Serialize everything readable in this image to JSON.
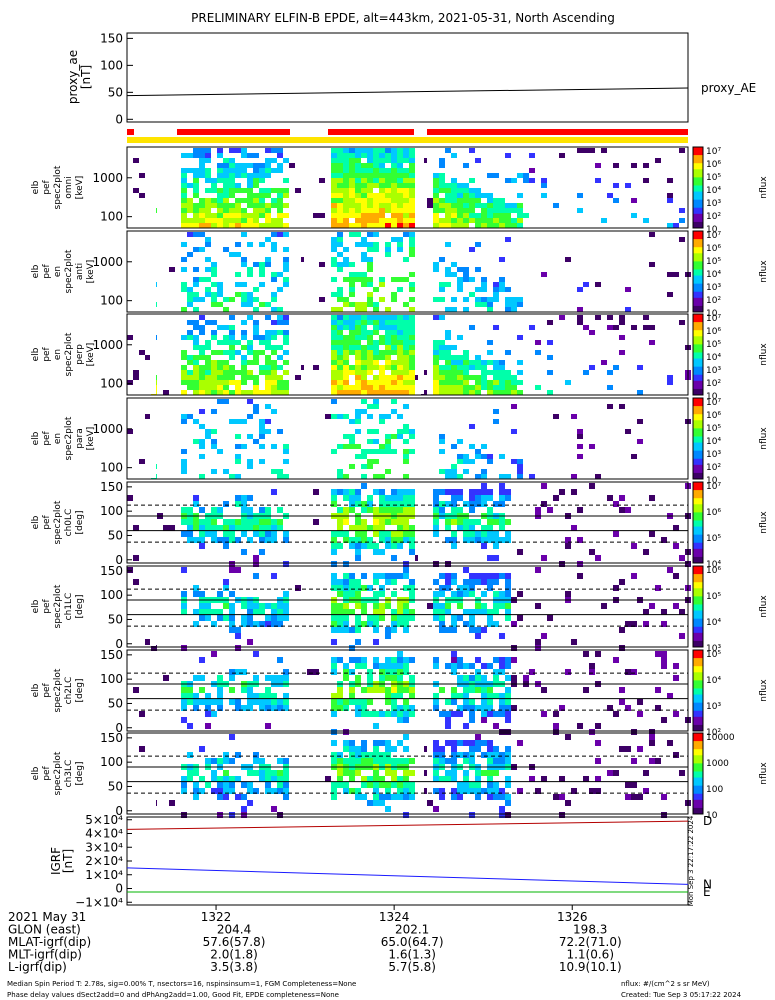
{
  "title": "PRELIMINARY ELFIN-B EPDE, alt=443km, 2021-05-31, North Ascending",
  "colors": {
    "ae_line": "#000000",
    "bar_red": "#ff0000",
    "bar_yellow": "#ffe400",
    "grf_d": "#b40000",
    "grf_n": "#1a1aff",
    "grf_e": "#00b400",
    "palette": [
      "#3d0066",
      "#6a00aa",
      "#3333ff",
      "#0088ff",
      "#00c8ff",
      "#00ffaa",
      "#33ff33",
      "#aaff00",
      "#ffff00",
      "#ffaa00",
      "#ff0000"
    ]
  },
  "chart_data": [
    {
      "panel": "proxy_ae",
      "type": "line",
      "ylabel": [
        "proxy_ae",
        "[nT]"
      ],
      "legend": "proxy_AE",
      "ylim": [
        -5,
        160
      ],
      "yticks": [
        "150",
        "100",
        "50",
        "0"
      ],
      "x": [
        1321.0,
        1327.3
      ],
      "y": [
        44,
        58
      ]
    },
    {
      "panel": "elb_pef_spec2plot_omni",
      "type": "heatmap",
      "ylabel": [
        "elb",
        "pef",
        "spec2plot",
        "omni",
        "[keV]"
      ],
      "yticks": [
        "1000",
        "100"
      ],
      "zlabel": "nflux",
      "zticks": [
        "10⁷",
        "10⁶",
        "10⁵",
        "10⁴",
        "10³",
        "10²",
        "10"
      ]
    },
    {
      "panel": "elb_pef_en_spec2plot_anti",
      "type": "heatmap",
      "ylabel": [
        "elb",
        "pef",
        "en",
        "spec2plot",
        "anti",
        "[keV]"
      ],
      "yticks": [
        "1000",
        "100"
      ],
      "zlabel": "nflux",
      "zticks": [
        "10⁷",
        "10⁶",
        "10⁵",
        "10⁴",
        "10³",
        "10²",
        "10"
      ]
    },
    {
      "panel": "elb_pef_en_spec2plot_perp",
      "type": "heatmap",
      "ylabel": [
        "elb",
        "pef",
        "en",
        "spec2plot",
        "perp",
        "[keV]"
      ],
      "yticks": [
        "1000",
        "100"
      ],
      "zlabel": "nflux",
      "zticks": [
        "10⁷",
        "10⁶",
        "10⁵",
        "10⁴",
        "10³",
        "10²",
        "10"
      ]
    },
    {
      "panel": "elb_pef_en_spec2plot_para",
      "type": "heatmap",
      "ylabel": [
        "elb",
        "pef",
        "en",
        "spec2plot",
        "para",
        "[keV]"
      ],
      "yticks": [
        "1000",
        "100"
      ],
      "zlabel": "nflux",
      "zticks": [
        "10⁷",
        "10⁶",
        "10⁵",
        "10⁴",
        "10³",
        "10²",
        "10"
      ]
    },
    {
      "panel": "elb_pef_spec2plot_ch0LC",
      "type": "heatmap",
      "ylabel": [
        "elb",
        "pef",
        "spec2plot",
        "ch0LC",
        "[deg]"
      ],
      "yticks": [
        "150",
        "100",
        "50",
        "0"
      ],
      "zlabel": "nflux",
      "zticks": [
        "10⁷",
        "10⁶",
        "10⁵",
        "10⁴"
      ]
    },
    {
      "panel": "elb_pef_spec2plot_ch1LC",
      "type": "heatmap",
      "ylabel": [
        "elb",
        "pef",
        "spec2plot",
        "ch1LC",
        "[deg]"
      ],
      "yticks": [
        "150",
        "100",
        "50",
        "0"
      ],
      "zlabel": "nflux",
      "zticks": [
        "10⁶",
        "10⁵",
        "10⁴",
        "10³"
      ]
    },
    {
      "panel": "elb_pef_spec2plot_ch2LC",
      "type": "heatmap",
      "ylabel": [
        "elb",
        "pef",
        "spec2plot",
        "ch2LC",
        "[deg]"
      ],
      "yticks": [
        "150",
        "100",
        "50",
        "0"
      ],
      "zlabel": "nflux",
      "zticks": [
        "10⁵",
        "10⁴",
        "10³",
        "10²"
      ]
    },
    {
      "panel": "elb_pef_spec2plot_ch3LC",
      "type": "heatmap",
      "ylabel": [
        "elb",
        "pef",
        "spec2plot",
        "ch3LC",
        "[deg]"
      ],
      "yticks": [
        "150",
        "100",
        "50",
        "0"
      ],
      "zlabel": "nflux",
      "zticks": [
        "10000",
        "1000",
        "100",
        "10"
      ]
    },
    {
      "panel": "IGRF",
      "type": "line",
      "ylabel": [
        "IGRF",
        "[nT]"
      ],
      "yticks": [
        "5×10⁴",
        "4×10⁴",
        "3×10⁴",
        "2×10⁴",
        "1×10⁴",
        "0",
        "−1×10⁴"
      ],
      "ylim": [
        -12000,
        52000
      ],
      "x": [
        1321.0,
        1327.3
      ],
      "series": [
        {
          "name": "D",
          "values": [
            43000,
            49000
          ]
        },
        {
          "name": "N",
          "values": [
            15000,
            3000
          ]
        },
        {
          "name": "E",
          "values": [
            -2500,
            -2500
          ]
        }
      ],
      "stamp": "Mon Sep  3 22:17:22 2024"
    }
  ],
  "orbit": {
    "rows": [
      {
        "label": "2021 May 31",
        "values": [
          "1322",
          "1324",
          "1326"
        ]
      },
      {
        "label": "GLON (east)",
        "values": [
          "204.4",
          "202.1",
          "198.3"
        ]
      },
      {
        "label": "MLAT-igrf(dip)",
        "values": [
          "57.6(57.8)",
          "65.0(64.7)",
          "72.2(71.0)"
        ]
      },
      {
        "label": "MLT-igrf(dip)",
        "values": [
          "2.0(1.8)",
          "1.6(1.3)",
          "1.1(0.6)"
        ]
      },
      {
        "label": "L-igrf(dip)",
        "values": [
          "3.5(3.8)",
          "5.7(5.8)",
          "10.9(10.1)"
        ]
      }
    ]
  },
  "footer": {
    "line1": "Median Spin Period T: 2.78s, sig=0.00% T, nsectors=16, nspinsinsum=1, FGM Completeness=None",
    "line2": "Phase delay values dSect2add=0 and dPhAng2add=1.00, Good Fit, EPDE completeness=None",
    "units": "nflux: #/(cm^2 s sr MeV)",
    "created": "Created: Tue Sep  3 05:17:22 2024"
  }
}
